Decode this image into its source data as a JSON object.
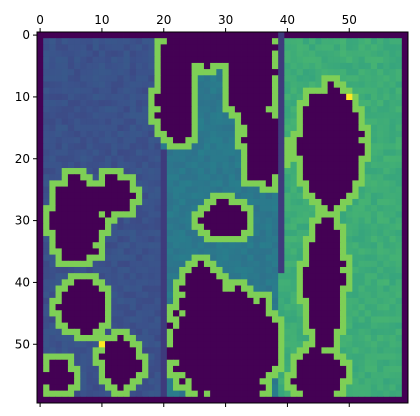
{
  "chart_data": {
    "type": "heatmap",
    "title": "",
    "xlabel": "",
    "ylabel": "",
    "x_axis_position": "top",
    "xlim": [
      -0.5,
      59.5
    ],
    "ylim": [
      59.5,
      -0.5
    ],
    "x_ticks": [
      0,
      10,
      20,
      30,
      40,
      50
    ],
    "y_ticks": [
      0,
      10,
      20,
      30,
      40,
      50
    ],
    "grid": false,
    "legend": "none",
    "colormap": "viridis",
    "value_range": [
      0,
      1
    ],
    "region_values": {
      "border": 0.0,
      "left_region": 0.25,
      "center_region": 0.4,
      "right_region": 0.62,
      "outline": 0.8,
      "marker": 1.0
    },
    "vertical_barriers": [
      {
        "x": 20,
        "y_from": 19,
        "y_to": 59
      },
      {
        "x": 39,
        "y_from": 0,
        "y_to": 39
      }
    ],
    "highlight_points": [
      {
        "x": 50,
        "y": 10,
        "value": 1.0
      },
      {
        "x": 10,
        "y": 50,
        "value": 1.0
      }
    ]
  },
  "colors": {
    "viridis_0": "#440154",
    "viridis_low": "#3b528b",
    "viridis_mid": "#21908d",
    "viridis_high": "#35b779",
    "viridis_outline": "#7ad151",
    "viridis_max": "#fde725"
  }
}
